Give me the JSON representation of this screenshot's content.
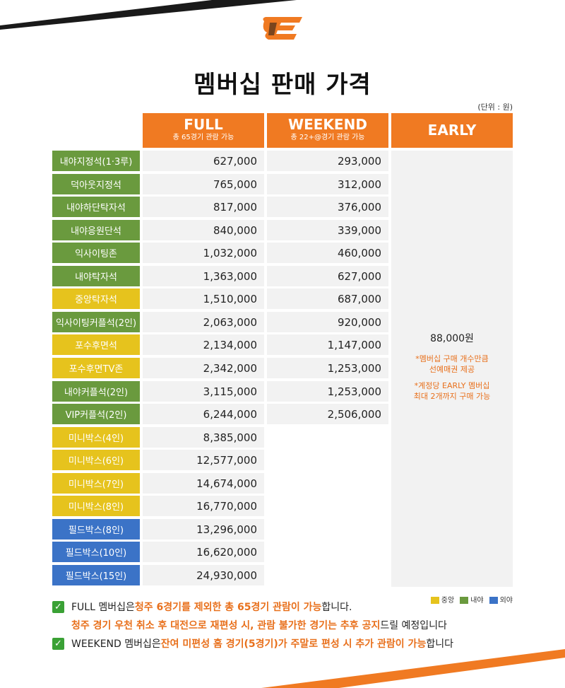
{
  "title": "멤버십 판매 가격",
  "unit": "(단위 : 원)",
  "columns": [
    {
      "name": "FULL",
      "sub": "총 65경기 관람 가능"
    },
    {
      "name": "WEEKEND",
      "sub": "총 22+@경기 관람 가능"
    },
    {
      "name": "EARLY",
      "sub": ""
    }
  ],
  "rows": [
    {
      "label": "내야지정석(1·3루)",
      "zone": "green",
      "full": "627,000",
      "weekend": "293,000"
    },
    {
      "label": "덕아웃지정석",
      "zone": "green",
      "full": "765,000",
      "weekend": "312,000"
    },
    {
      "label": "내야하단탁자석",
      "zone": "green",
      "full": "817,000",
      "weekend": "376,000"
    },
    {
      "label": "내야응원단석",
      "zone": "green",
      "full": "840,000",
      "weekend": "339,000"
    },
    {
      "label": "익사이팅존",
      "zone": "green",
      "full": "1,032,000",
      "weekend": "460,000"
    },
    {
      "label": "내야탁자석",
      "zone": "green",
      "full": "1,363,000",
      "weekend": "627,000"
    },
    {
      "label": "중앙탁자석",
      "zone": "yellow",
      "full": "1,510,000",
      "weekend": "687,000"
    },
    {
      "label": "익사이팅커플석(2인)",
      "zone": "green",
      "full": "2,063,000",
      "weekend": "920,000"
    },
    {
      "label": "포수후면석",
      "zone": "yellow",
      "full": "2,134,000",
      "weekend": "1,147,000"
    },
    {
      "label": "포수후면TV존",
      "zone": "yellow",
      "full": "2,342,000",
      "weekend": "1,253,000"
    },
    {
      "label": "내야커플석(2인)",
      "zone": "green",
      "full": "3,115,000",
      "weekend": "1,253,000"
    },
    {
      "label": "VIP커플석(2인)",
      "zone": "green",
      "full": "6,244,000",
      "weekend": "2,506,000"
    },
    {
      "label": "미니박스(4인)",
      "zone": "yellow",
      "full": "8,385,000",
      "weekend": ""
    },
    {
      "label": "미니박스(6인)",
      "zone": "yellow",
      "full": "12,577,000",
      "weekend": ""
    },
    {
      "label": "미니박스(7인)",
      "zone": "yellow",
      "full": "14,674,000",
      "weekend": ""
    },
    {
      "label": "미니박스(8인)",
      "zone": "yellow",
      "full": "16,770,000",
      "weekend": ""
    },
    {
      "label": "필드박스(8인)",
      "zone": "blue",
      "full": "13,296,000",
      "weekend": ""
    },
    {
      "label": "필드박스(10인)",
      "zone": "blue",
      "full": "16,620,000",
      "weekend": ""
    },
    {
      "label": "필드박스(15인)",
      "zone": "blue",
      "full": "24,930,000",
      "weekend": ""
    }
  ],
  "early": {
    "price": "88,000원",
    "note1_line1": "*멤버십 구매 개수만큼",
    "note1_line2": "선예매권 제공",
    "note2_line1": "*계정당 EARLY 멤버십",
    "note2_line2": "최대 2개까지 구매 가능"
  },
  "legend": [
    {
      "label": "중앙",
      "color": "#e6c31d"
    },
    {
      "label": "내야",
      "color": "#6a9a3e"
    },
    {
      "label": "외야",
      "color": "#3b73c7"
    }
  ],
  "notes": {
    "n1_a": "FULL 멤버십은 ",
    "n1_b": "청주 6경기를 제외한 총 65경기 관람이 가능",
    "n1_c": "합니다.",
    "n2_a": "청주 경기 우천 취소 후 대전으로 재편성 시, 관람 불가한 경기는 추후 공지",
    "n2_b": "드릴 예정입니다",
    "n3_a": "WEEKEND 멤버십은 ",
    "n3_b": "잔여 미편성 홈 경기(5경기)가 주말로 편성 시 추가 관람이 가능",
    "n3_c": "합니다"
  },
  "colors": {
    "accent": "#f07a22",
    "green": "#6a9a3e",
    "yellow": "#e6c31d",
    "blue": "#3b73c7"
  }
}
